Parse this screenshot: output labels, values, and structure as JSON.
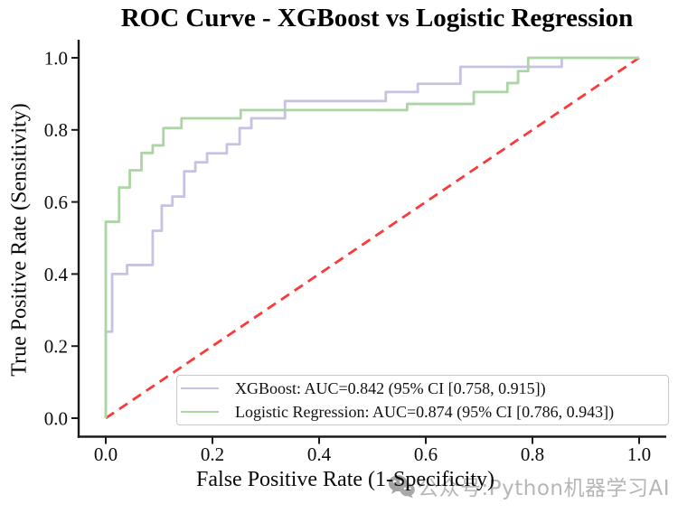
{
  "title": "ROC Curve - XGBoost vs Logistic Regression",
  "watermark": {
    "icon": "wechat-icon",
    "text": "公众号:Python机器学习AI",
    "color": "#b6b6b6"
  },
  "chart_data": {
    "type": "line",
    "subtype": "roc-step-curves",
    "title": "ROC Curve - XGBoost vs Logistic Regression",
    "xlabel": "False Positive Rate (1-Specificity)",
    "ylabel": "True Positive Rate (Sensitivity)",
    "xlim": [
      -0.05,
      1.05
    ],
    "ylim": [
      -0.05,
      1.05
    ],
    "grid": false,
    "legend_position": "lower right",
    "axis_color": "#1a1a1a",
    "xticks": [
      0.0,
      0.2,
      0.4,
      0.6,
      0.8,
      1.0
    ],
    "xtick_labels": [
      "0.0",
      "0.2",
      "0.4",
      "0.6",
      "0.8",
      "1.0"
    ],
    "yticks": [
      0.0,
      0.2,
      0.4,
      0.6,
      0.8,
      1.0
    ],
    "ytick_labels": [
      "0.0",
      "0.2",
      "0.4",
      "0.6",
      "0.8",
      "1.0"
    ],
    "reference_line": {
      "name": "chance-diagonal",
      "color": "#f93a3a",
      "style": "dashed",
      "points": [
        [
          0,
          0
        ],
        [
          1,
          1
        ]
      ]
    },
    "series": [
      {
        "name": "XGBoost",
        "label": "XGBoost: AUC=0.842 (95% CI [0.758, 0.915])",
        "auc": 0.842,
        "ci_95": [
          0.758,
          0.915
        ],
        "color": "#c6c2e1",
        "points": [
          [
            0,
            0
          ],
          [
            0,
            0.24
          ],
          [
            0.012,
            0.24
          ],
          [
            0.012,
            0.4
          ],
          [
            0.04,
            0.4
          ],
          [
            0.04,
            0.425
          ],
          [
            0.088,
            0.425
          ],
          [
            0.088,
            0.52
          ],
          [
            0.105,
            0.52
          ],
          [
            0.105,
            0.59
          ],
          [
            0.125,
            0.59
          ],
          [
            0.125,
            0.615
          ],
          [
            0.147,
            0.615
          ],
          [
            0.147,
            0.685
          ],
          [
            0.168,
            0.685
          ],
          [
            0.168,
            0.71
          ],
          [
            0.19,
            0.71
          ],
          [
            0.19,
            0.735
          ],
          [
            0.227,
            0.735
          ],
          [
            0.227,
            0.76
          ],
          [
            0.251,
            0.76
          ],
          [
            0.251,
            0.805
          ],
          [
            0.273,
            0.805
          ],
          [
            0.273,
            0.832
          ],
          [
            0.336,
            0.832
          ],
          [
            0.336,
            0.88
          ],
          [
            0.525,
            0.88
          ],
          [
            0.525,
            0.905
          ],
          [
            0.585,
            0.905
          ],
          [
            0.585,
            0.928
          ],
          [
            0.665,
            0.928
          ],
          [
            0.665,
            0.975
          ],
          [
            0.855,
            0.975
          ],
          [
            0.855,
            1.0
          ],
          [
            1.0,
            1.0
          ]
        ]
      },
      {
        "name": "Logistic Regression",
        "label": "Logistic Regression: AUC=0.874 (95% CI [0.786, 0.943])",
        "auc": 0.874,
        "ci_95": [
          0.786,
          0.943
        ],
        "color": "#abd5a2",
        "points": [
          [
            0,
            0
          ],
          [
            0,
            0.545
          ],
          [
            0.025,
            0.545
          ],
          [
            0.025,
            0.64
          ],
          [
            0.045,
            0.64
          ],
          [
            0.045,
            0.688
          ],
          [
            0.067,
            0.688
          ],
          [
            0.067,
            0.736
          ],
          [
            0.088,
            0.736
          ],
          [
            0.088,
            0.757
          ],
          [
            0.108,
            0.757
          ],
          [
            0.108,
            0.805
          ],
          [
            0.142,
            0.805
          ],
          [
            0.142,
            0.832
          ],
          [
            0.253,
            0.832
          ],
          [
            0.253,
            0.855
          ],
          [
            0.565,
            0.855
          ],
          [
            0.565,
            0.872
          ],
          [
            0.69,
            0.872
          ],
          [
            0.69,
            0.905
          ],
          [
            0.753,
            0.905
          ],
          [
            0.753,
            0.93
          ],
          [
            0.773,
            0.93
          ],
          [
            0.773,
            0.963
          ],
          [
            0.792,
            0.963
          ],
          [
            0.792,
            1.0
          ],
          [
            1.0,
            1.0
          ]
        ]
      }
    ]
  }
}
